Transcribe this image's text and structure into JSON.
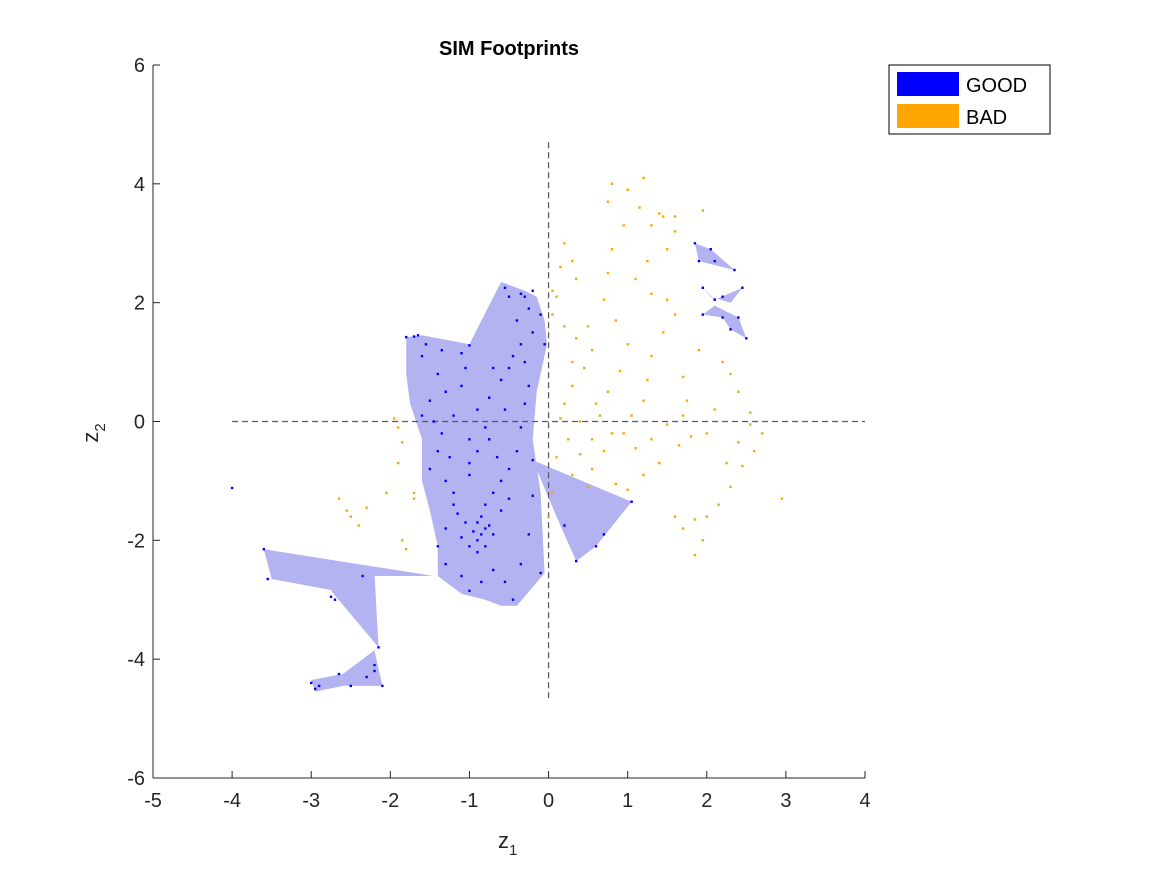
{
  "chart_data": {
    "type": "scatter",
    "title": "SIM Footprints",
    "xlabel": {
      "base": "z",
      "sub": "1"
    },
    "ylabel": {
      "base": "z",
      "sub": "2"
    },
    "xlim": [
      -5,
      4
    ],
    "ylim": [
      -6,
      6
    ],
    "xticks": [
      "-5",
      "-4",
      "-3",
      "-2",
      "-1",
      "0",
      "1",
      "2",
      "3",
      "4"
    ],
    "yticks": [
      "-6",
      "-4",
      "-2",
      "0",
      "2",
      "4",
      "6"
    ],
    "grid": false,
    "legend_position": "top-right",
    "reference_lines": {
      "vertical_x": 0,
      "vertical_y_range": [
        -4.7,
        4.7
      ],
      "horizontal_y": 0,
      "horizontal_x_range": [
        -4,
        4
      ]
    },
    "legend": [
      {
        "label": "GOOD",
        "color": "#0000ff"
      },
      {
        "label": "BAD",
        "color": "#ffa500"
      }
    ],
    "footprint_color": "#b3b3f2",
    "footprints": [
      [
        [
          -1.8,
          1.42
        ],
        [
          -1.6,
          1.45
        ],
        [
          -1.0,
          1.3
        ],
        [
          -0.6,
          2.35
        ],
        [
          -0.3,
          2.2
        ],
        [
          -0.15,
          2.1
        ],
        [
          -0.05,
          1.7
        ],
        [
          -0.02,
          1.3
        ],
        [
          -0.15,
          0.5
        ],
        [
          -0.2,
          -0.3
        ],
        [
          -0.1,
          -1.2
        ],
        [
          -0.05,
          -2.55
        ],
        [
          -0.4,
          -3.1
        ],
        [
          -0.6,
          -3.1
        ],
        [
          -0.8,
          -3.0
        ],
        [
          -1.1,
          -2.9
        ],
        [
          -1.4,
          -2.6
        ],
        [
          -1.4,
          -2.1
        ],
        [
          -1.5,
          -1.5
        ],
        [
          -1.6,
          -1.0
        ],
        [
          -1.6,
          -0.3
        ],
        [
          -1.75,
          0.3
        ],
        [
          -1.8,
          0.8
        ]
      ],
      [
        [
          -0.2,
          -0.65
        ],
        [
          1.05,
          -1.35
        ],
        [
          0.6,
          -2.1
        ],
        [
          0.35,
          -2.35
        ],
        [
          0.1,
          -1.6
        ]
      ],
      [
        [
          -3.6,
          -2.15
        ],
        [
          -3.5,
          -2.65
        ],
        [
          -2.7,
          -2.85
        ],
        [
          -2.35,
          -2.6
        ],
        [
          -1.45,
          -2.6
        ]
      ],
      [
        [
          -2.75,
          -2.85
        ],
        [
          -2.35,
          -2.55
        ],
        [
          -2.2,
          -2.55
        ],
        [
          -2.15,
          -3.8
        ]
      ],
      [
        [
          -3.0,
          -4.35
        ],
        [
          -2.6,
          -4.25
        ],
        [
          -2.2,
          -3.85
        ],
        [
          -2.1,
          -4.45
        ],
        [
          -2.6,
          -4.45
        ],
        [
          -2.95,
          -4.55
        ]
      ],
      [
        [
          1.85,
          3.0
        ],
        [
          2.05,
          2.9
        ],
        [
          2.35,
          2.55
        ],
        [
          1.9,
          2.7
        ]
      ],
      [
        [
          1.95,
          2.25
        ],
        [
          2.1,
          2.05
        ],
        [
          2.45,
          2.25
        ],
        [
          2.3,
          2.0
        ],
        [
          2.05,
          2.1
        ]
      ],
      [
        [
          1.95,
          1.8
        ],
        [
          2.2,
          1.75
        ],
        [
          2.3,
          1.55
        ],
        [
          2.5,
          1.4
        ],
        [
          2.4,
          1.75
        ],
        [
          2.1,
          1.95
        ]
      ]
    ],
    "good_points": [
      [
        -4.0,
        -1.12
      ],
      [
        -3.55,
        -2.65
      ],
      [
        -3.6,
        -2.15
      ],
      [
        -2.75,
        -2.95
      ],
      [
        -2.7,
        -3.0
      ],
      [
        -2.35,
        -2.6
      ],
      [
        -2.15,
        -3.8
      ],
      [
        -2.2,
        -4.1
      ],
      [
        -2.2,
        -4.2
      ],
      [
        -2.3,
        -4.3
      ],
      [
        -2.1,
        -4.45
      ],
      [
        -2.5,
        -4.45
      ],
      [
        -2.65,
        -4.25
      ],
      [
        -2.9,
        -4.45
      ],
      [
        -3.0,
        -4.4
      ],
      [
        -2.95,
        -4.5
      ],
      [
        -1.8,
        1.42
      ],
      [
        -1.7,
        1.43
      ],
      [
        -1.65,
        1.45
      ],
      [
        -1.55,
        1.3
      ],
      [
        -1.35,
        1.2
      ],
      [
        -1.1,
        1.15
      ],
      [
        -1.0,
        1.28
      ],
      [
        -1.05,
        0.9
      ],
      [
        -1.1,
        0.6
      ],
      [
        -1.3,
        0.5
      ],
      [
        -1.5,
        0.35
      ],
      [
        -1.6,
        0.1
      ],
      [
        -1.45,
        0.0
      ],
      [
        -1.35,
        -0.2
      ],
      [
        -1.4,
        -0.5
      ],
      [
        -1.5,
        -0.8
      ],
      [
        -1.3,
        -1.0
      ],
      [
        -1.2,
        -1.2
      ],
      [
        -1.0,
        -0.9
      ],
      [
        -0.9,
        -0.5
      ],
      [
        -1.0,
        -0.3
      ],
      [
        -0.8,
        -0.1
      ],
      [
        -0.9,
        0.2
      ],
      [
        -0.75,
        0.4
      ],
      [
        -0.6,
        0.7
      ],
      [
        -0.5,
        0.9
      ],
      [
        -0.45,
        1.1
      ],
      [
        -0.35,
        1.3
      ],
      [
        -0.2,
        1.5
      ],
      [
        -0.25,
        1.9
      ],
      [
        -0.3,
        2.1
      ],
      [
        -0.35,
        2.15
      ],
      [
        -0.55,
        2.25
      ],
      [
        -0.5,
        2.1
      ],
      [
        -0.4,
        1.7
      ],
      [
        -0.3,
        1.0
      ],
      [
        -0.25,
        0.6
      ],
      [
        -0.3,
        0.3
      ],
      [
        -0.35,
        -0.1
      ],
      [
        -0.4,
        -0.5
      ],
      [
        -0.5,
        -0.8
      ],
      [
        -0.6,
        -1.0
      ],
      [
        -0.7,
        -1.2
      ],
      [
        -0.8,
        -1.4
      ],
      [
        -0.85,
        -1.6
      ],
      [
        -0.9,
        -1.7
      ],
      [
        -0.8,
        -1.8
      ],
      [
        -0.85,
        -1.9
      ],
      [
        -0.9,
        -2.0
      ],
      [
        -0.95,
        -1.85
      ],
      [
        -0.75,
        -1.75
      ],
      [
        -0.7,
        -1.9
      ],
      [
        -0.8,
        -2.1
      ],
      [
        -0.9,
        -2.2
      ],
      [
        -1.0,
        -2.1
      ],
      [
        -1.1,
        -1.95
      ],
      [
        -1.05,
        -1.7
      ],
      [
        -1.15,
        -1.55
      ],
      [
        -1.2,
        -1.4
      ],
      [
        -1.3,
        -1.8
      ],
      [
        -1.4,
        -2.1
      ],
      [
        -1.3,
        -2.4
      ],
      [
        -1.1,
        -2.6
      ],
      [
        -1.0,
        -2.85
      ],
      [
        -0.85,
        -2.7
      ],
      [
        -0.7,
        -2.5
      ],
      [
        -0.55,
        -2.7
      ],
      [
        -0.45,
        -3.0
      ],
      [
        -0.35,
        -2.4
      ],
      [
        -0.25,
        -1.9
      ],
      [
        -0.2,
        -1.25
      ],
      [
        -0.1,
        -2.55
      ],
      [
        -0.6,
        -1.5
      ],
      [
        -0.5,
        -1.3
      ],
      [
        -0.65,
        -0.6
      ],
      [
        -0.75,
        -0.3
      ],
      [
        -1.2,
        0.1
      ],
      [
        -1.25,
        -0.6
      ],
      [
        -1.0,
        -0.7
      ],
      [
        -0.55,
        0.2
      ],
      [
        -0.7,
        0.9
      ],
      [
        -1.4,
        0.8
      ],
      [
        -1.6,
        1.1
      ],
      [
        -0.05,
        1.3
      ],
      [
        -0.1,
        1.8
      ],
      [
        -0.2,
        2.2
      ],
      [
        -0.2,
        -0.65
      ],
      [
        1.05,
        -1.35
      ],
      [
        0.7,
        -1.9
      ],
      [
        0.6,
        -2.1
      ],
      [
        0.35,
        -2.35
      ],
      [
        0.2,
        -1.75
      ],
      [
        1.85,
        3.0
      ],
      [
        2.05,
        2.9
      ],
      [
        2.1,
        2.7
      ],
      [
        2.35,
        2.55
      ],
      [
        1.9,
        2.7
      ],
      [
        1.95,
        2.25
      ],
      [
        2.1,
        2.05
      ],
      [
        2.2,
        2.1
      ],
      [
        2.45,
        2.25
      ],
      [
        1.95,
        1.8
      ],
      [
        2.2,
        1.75
      ],
      [
        2.3,
        1.55
      ],
      [
        2.5,
        1.4
      ],
      [
        2.4,
        1.75
      ]
    ],
    "bad_points": [
      [
        0.2,
        3.0
      ],
      [
        0.3,
        2.7
      ],
      [
        0.35,
        2.4
      ],
      [
        0.1,
        2.1
      ],
      [
        0.05,
        1.8
      ],
      [
        0.2,
        1.6
      ],
      [
        0.35,
        1.4
      ],
      [
        0.5,
        1.6
      ],
      [
        0.55,
        1.2
      ],
      [
        0.45,
        0.9
      ],
      [
        0.3,
        0.6
      ],
      [
        0.2,
        0.3
      ],
      [
        0.15,
        0.05
      ],
      [
        0.25,
        -0.3
      ],
      [
        0.4,
        -0.55
      ],
      [
        0.55,
        -0.8
      ],
      [
        0.7,
        -0.5
      ],
      [
        0.8,
        -0.2
      ],
      [
        0.65,
        0.1
      ],
      [
        0.75,
        0.5
      ],
      [
        0.9,
        0.85
      ],
      [
        1.0,
        1.3
      ],
      [
        0.85,
        1.7
      ],
      [
        0.7,
        2.05
      ],
      [
        0.75,
        2.5
      ],
      [
        0.8,
        2.9
      ],
      [
        0.95,
        3.3
      ],
      [
        0.75,
        3.7
      ],
      [
        0.8,
        4.0
      ],
      [
        1.0,
        3.9
      ],
      [
        1.2,
        4.1
      ],
      [
        1.15,
        3.6
      ],
      [
        1.3,
        3.3
      ],
      [
        1.45,
        3.45
      ],
      [
        1.6,
        3.2
      ],
      [
        1.5,
        2.9
      ],
      [
        1.25,
        2.7
      ],
      [
        1.1,
        2.4
      ],
      [
        1.3,
        2.15
      ],
      [
        1.5,
        2.05
      ],
      [
        1.6,
        1.8
      ],
      [
        1.45,
        1.5
      ],
      [
        1.3,
        1.1
      ],
      [
        1.25,
        0.7
      ],
      [
        1.2,
        0.35
      ],
      [
        1.05,
        0.1
      ],
      [
        0.95,
        -0.2
      ],
      [
        1.1,
        -0.45
      ],
      [
        1.3,
        -0.3
      ],
      [
        1.5,
        -0.05
      ],
      [
        1.7,
        0.1
      ],
      [
        1.8,
        -0.25
      ],
      [
        1.65,
        -0.4
      ],
      [
        1.4,
        -0.7
      ],
      [
        1.2,
        -0.9
      ],
      [
        1.0,
        -1.15
      ],
      [
        0.85,
        -1.05
      ],
      [
        0.5,
        -1.1
      ],
      [
        0.3,
        -0.9
      ],
      [
        0.1,
        -0.6
      ],
      [
        0.05,
        -1.2
      ],
      [
        0.0,
        -1.6
      ],
      [
        1.6,
        -1.6
      ],
      [
        1.7,
        -1.8
      ],
      [
        1.85,
        -1.65
      ],
      [
        1.85,
        -2.25
      ],
      [
        1.95,
        -2.0
      ],
      [
        2.0,
        -1.6
      ],
      [
        2.15,
        -1.4
      ],
      [
        2.3,
        -1.1
      ],
      [
        2.25,
        -0.7
      ],
      [
        2.4,
        -0.35
      ],
      [
        2.55,
        -0.05
      ],
      [
        2.7,
        -0.2
      ],
      [
        2.6,
        -0.5
      ],
      [
        2.45,
        -0.75
      ],
      [
        2.55,
        0.15
      ],
      [
        2.4,
        0.5
      ],
      [
        2.3,
        0.8
      ],
      [
        2.2,
        1.0
      ],
      [
        2.1,
        0.2
      ],
      [
        2.0,
        -0.2
      ],
      [
        1.75,
        0.35
      ],
      [
        1.7,
        0.75
      ],
      [
        1.9,
        1.2
      ],
      [
        2.95,
        -1.3
      ],
      [
        1.95,
        3.55
      ],
      [
        1.6,
        3.45
      ],
      [
        1.4,
        3.5
      ],
      [
        0.15,
        2.6
      ],
      [
        0.05,
        2.2
      ],
      [
        0.3,
        1.0
      ],
      [
        0.6,
        0.3
      ],
      [
        0.4,
        0.0
      ],
      [
        0.55,
        -0.3
      ],
      [
        -1.95,
        0.05
      ],
      [
        -1.9,
        -0.1
      ],
      [
        -1.85,
        -0.35
      ],
      [
        -1.9,
        -0.7
      ],
      [
        -1.7,
        -1.2
      ],
      [
        -1.7,
        -1.3
      ],
      [
        -1.85,
        -2.0
      ],
      [
        -1.8,
        -2.15
      ],
      [
        -2.4,
        -1.75
      ],
      [
        -2.5,
        -1.6
      ],
      [
        -2.3,
        -1.45
      ],
      [
        -2.65,
        -1.3
      ],
      [
        -2.55,
        -1.5
      ],
      [
        -2.05,
        -1.2
      ]
    ]
  }
}
